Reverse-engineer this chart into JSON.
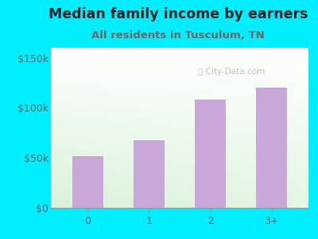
{
  "title": "Median family income by earners",
  "subtitle": "All residents in Tusculum, TN",
  "categories": [
    "0",
    "1",
    "2",
    "3+"
  ],
  "values": [
    52000,
    68000,
    108000,
    120000
  ],
  "bar_color": "#c8a8d8",
  "title_fontsize": 12.5,
  "subtitle_fontsize": 9.5,
  "subtitle_color": "#7a6060",
  "title_color": "#222222",
  "yticks": [
    0,
    50000,
    100000,
    150000
  ],
  "ytick_labels": [
    "$0",
    "$50k",
    "$100k",
    "$150k"
  ],
  "ylim": [
    0,
    160000
  ],
  "background_outer": "#00eeff",
  "watermark": "City-Data.com",
  "axis_color": "#999999",
  "tick_color": "#666666"
}
